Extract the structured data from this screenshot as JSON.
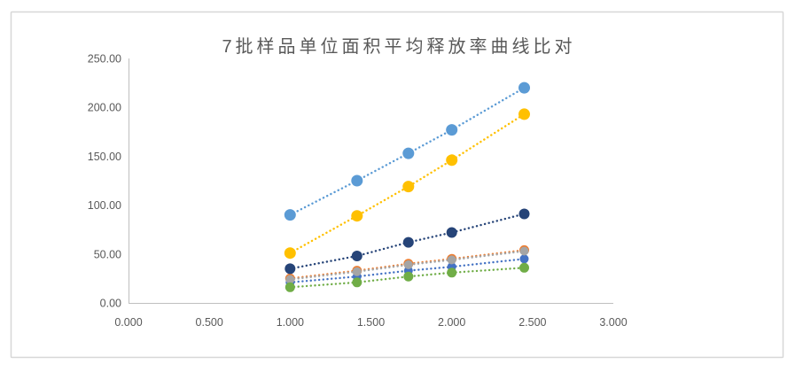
{
  "chart_data": {
    "type": "scatter",
    "title": "7批样品单位面积平均释放率曲线比对",
    "xlabel": "",
    "ylabel": "",
    "xlim": [
      0.0,
      3.0
    ],
    "ylim": [
      0.0,
      250.0
    ],
    "grid": false,
    "legend": "none",
    "line_style": "dotted",
    "marker": "circle",
    "x_tick_labels": [
      "0.000",
      "0.500",
      "1.000",
      "1.500",
      "2.000",
      "2.500",
      "3.000"
    ],
    "y_tick_labels": [
      "250.00",
      "200.00",
      "150.00",
      "100.00",
      "50.00",
      "0.00"
    ],
    "x": [
      1.0,
      1.414,
      1.732,
      2.0,
      2.449
    ],
    "series": [
      {
        "name": "series1",
        "color": "#4472C4",
        "marker_r": 5.0,
        "values": [
          21,
          27,
          33,
          37,
          45
        ]
      },
      {
        "name": "series2",
        "color": "#ED7D31",
        "marker_r": 5.5,
        "values": [
          25,
          33,
          40,
          45,
          54
        ]
      },
      {
        "name": "series3",
        "color": "#A5A5A5",
        "marker_r": 5.0,
        "values": [
          24,
          32,
          39,
          44,
          53
        ]
      },
      {
        "name": "series4",
        "color": "#FFC000",
        "marker_r": 6.5,
        "values": [
          51,
          89,
          119,
          146,
          193
        ]
      },
      {
        "name": "series5",
        "color": "#5B9BD5",
        "marker_r": 6.5,
        "values": [
          90,
          125,
          153,
          177,
          220
        ]
      },
      {
        "name": "series6",
        "color": "#70AD47",
        "marker_r": 5.5,
        "values": [
          16,
          21,
          27,
          31,
          36
        ]
      },
      {
        "name": "series7",
        "color": "#264478",
        "marker_r": 6.0,
        "values": [
          35,
          48,
          62,
          72,
          91
        ]
      }
    ],
    "colors": {
      "title_text": "#595959",
      "tick_text": "#595959",
      "axis_line": "#bfbfbf",
      "frame_border": "#d7d7d7",
      "background": "#ffffff"
    }
  }
}
